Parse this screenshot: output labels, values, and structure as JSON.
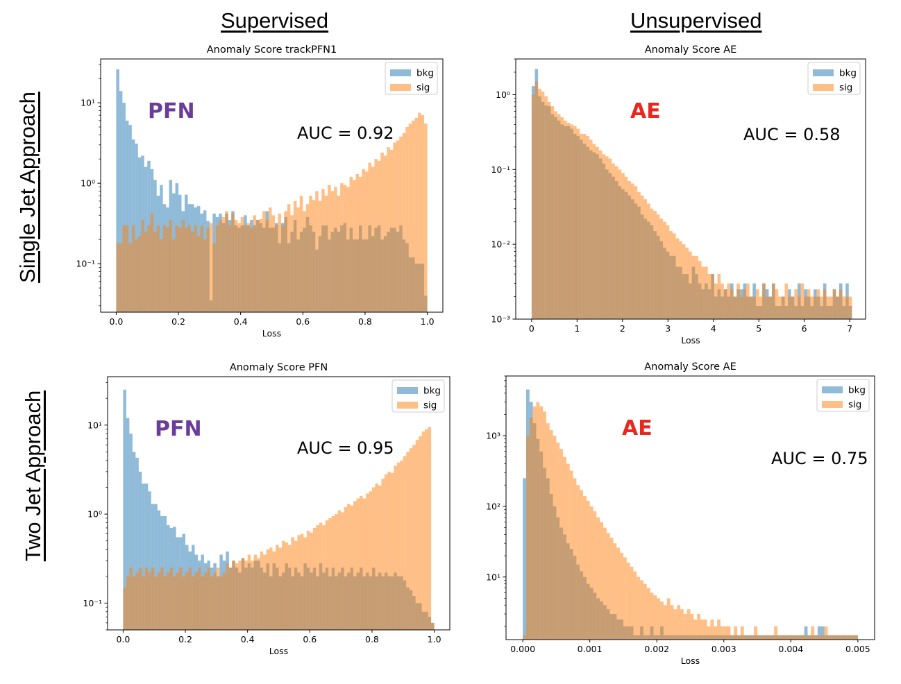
{
  "headings": {
    "left": "Supervised",
    "right": "Unsupervised"
  },
  "row_labels": {
    "top": "Single Jet Approach",
    "bottom": "Two Jet Approach"
  },
  "colors": {
    "bkg": "#1f77b4",
    "sig": "#ff7f0e",
    "bar_alpha": 0.5,
    "pfn_label": "#6a3d9a",
    "ae_label": "#e8281e"
  },
  "chart_data": [
    {
      "type": "bar",
      "histogram": true,
      "title": "Anomaly Score trackPFN1",
      "xlabel": "Loss",
      "ylabel": "",
      "xlim": [
        -0.05,
        1.05
      ],
      "ylim": [
        0.025,
        35
      ],
      "yscale": "log",
      "xticks": [
        0.0,
        0.2,
        0.4,
        0.6,
        0.8,
        1.0
      ],
      "xtick_labels": [
        "0.0",
        "0.2",
        "0.4",
        "0.6",
        "0.8",
        "1.0"
      ],
      "yticks": [
        0.1,
        1,
        10
      ],
      "ytick_labels": [
        "10⁻¹",
        "10⁰",
        "10¹"
      ],
      "legend": [
        "bkg",
        "sig"
      ],
      "legend_loc": "upper right",
      "grid": false,
      "label_text": "PFN",
      "label_color": "#6a3d9a",
      "auc": "AUC = 0.92",
      "bins": {
        "start": 0.0,
        "stop": 1.0
      },
      "series": [
        {
          "name": "bkg",
          "values": [
            26,
            14,
            10,
            6,
            5.3,
            3.5,
            3.1,
            2.1,
            2.2,
            1.6,
            1.9,
            1.5,
            1.1,
            0.7,
            0.95,
            0.55,
            0.5,
            1.1,
            0.75,
            1.0,
            0.72,
            0.45,
            0.72,
            0.55,
            0.55,
            0.5,
            0.52,
            0.42,
            0.46,
            0.34,
            0.035,
            0.42,
            0.38,
            0.42,
            0.32,
            0.42,
            0.35,
            0.45,
            0.3,
            0.28,
            0.3,
            0.4,
            0.3,
            0.35,
            0.3,
            0.35,
            0.32,
            0.28,
            0.45,
            0.28,
            0.28,
            0.32,
            0.18,
            0.32,
            0.38,
            0.18,
            0.25,
            0.35,
            0.2,
            0.25,
            0.28,
            0.38,
            0.3,
            0.25,
            0.15,
            0.22,
            0.3,
            0.3,
            0.2,
            0.25,
            0.28,
            0.25,
            0.3,
            0.32,
            0.2,
            0.28,
            0.2,
            0.2,
            0.3,
            0.2,
            0.2,
            0.3,
            0.22,
            0.28,
            0.3,
            0.2,
            0.22,
            0.25,
            0.28,
            0.28,
            0.25,
            0.3,
            0.2,
            0.18,
            0.12,
            0.12,
            0.1,
            0.1,
            0.1,
            0.04
          ]
        },
        {
          "name": "sig",
          "values": [
            0.18,
            0.18,
            0.3,
            0.3,
            0.18,
            0.3,
            0.2,
            0.22,
            0.35,
            0.25,
            0.3,
            0.42,
            0.25,
            0.3,
            0.2,
            0.3,
            0.28,
            0.35,
            0.2,
            0.3,
            0.28,
            0.35,
            0.28,
            0.3,
            0.25,
            0.3,
            0.22,
            0.3,
            0.2,
            0.28,
            0.32,
            0.18,
            0.3,
            0.35,
            0.38,
            0.45,
            0.3,
            0.42,
            0.35,
            0.32,
            0.38,
            0.3,
            0.32,
            0.28,
            0.4,
            0.35,
            0.36,
            0.45,
            0.35,
            0.5,
            0.4,
            0.3,
            0.42,
            0.3,
            0.45,
            0.55,
            0.4,
            0.6,
            0.5,
            0.7,
            0.45,
            0.55,
            0.7,
            0.62,
            0.8,
            0.6,
            0.85,
            0.7,
            0.95,
            0.8,
            0.9,
            0.7,
            1.0,
            0.95,
            0.9,
            1.2,
            1.1,
            1.3,
            1.2,
            1.5,
            1.4,
            1.8,
            1.6,
            2.0,
            1.9,
            2.4,
            2.2,
            2.8,
            2.6,
            3.2,
            3.4,
            3.8,
            4.2,
            5.0,
            5.5,
            6.0,
            6.5,
            7.5,
            7.0,
            5.5
          ]
        }
      ]
    },
    {
      "type": "bar",
      "histogram": true,
      "title": "Anomaly Score AE",
      "xlabel": "Loss",
      "ylabel": "",
      "xlim": [
        -0.35,
        7.35
      ],
      "ylim": [
        0.001,
        3
      ],
      "yscale": "log",
      "xticks": [
        0,
        1,
        2,
        3,
        4,
        5,
        6,
        7
      ],
      "xtick_labels": [
        "0",
        "1",
        "2",
        "3",
        "4",
        "5",
        "6",
        "7"
      ],
      "yticks": [
        0.001,
        0.01,
        0.1,
        1
      ],
      "ytick_labels": [
        "10⁻³",
        "10⁻²",
        "10⁻¹",
        "10⁰"
      ],
      "legend": [
        "bkg",
        "sig"
      ],
      "legend_loc": "upper right",
      "grid": false,
      "label_text": "AE",
      "label_color": "#e8281e",
      "auc": "AUC = 0.58",
      "bins": {
        "start": 0.0,
        "stop": 7.05
      },
      "series": [
        {
          "name": "bkg",
          "values": [
            1.3,
            2.2,
            0.95,
            0.8,
            0.72,
            0.7,
            0.55,
            0.5,
            0.45,
            0.4,
            0.38,
            0.38,
            0.35,
            0.3,
            0.28,
            0.25,
            0.22,
            0.2,
            0.18,
            0.17,
            0.16,
            0.14,
            0.12,
            0.1,
            0.09,
            0.08,
            0.07,
            0.06,
            0.055,
            0.05,
            0.045,
            0.04,
            0.035,
            0.032,
            0.025,
            0.022,
            0.02,
            0.018,
            0.015,
            0.013,
            0.011,
            0.009,
            0.008,
            0.007,
            0.007,
            0.005,
            0.005,
            0.004,
            0.004,
            0.003,
            0.005,
            0.004,
            0.003,
            0.0025,
            0.003,
            0.0025,
            0.004,
            0.002,
            0.0025,
            0.002,
            0.0025,
            0.002,
            0.003,
            0.002,
            0.0025,
            0.0025,
            0.003,
            0.002,
            0.002,
            0.003,
            0.0015,
            0.0015,
            0.003,
            0.0025,
            0.002,
            0.003,
            0.0015,
            0.0015,
            0.002,
            0.0015,
            0.0025,
            0.002,
            0.0015,
            0.003,
            0.0015,
            0.0025,
            0.002,
            0.0015,
            0.0025,
            0.002,
            0.0015,
            0.003,
            0.0015,
            0.0015,
            0.0025,
            0.002,
            0.003,
            0.0015,
            0.003,
            0.0015
          ]
        },
        {
          "name": "sig",
          "values": [
            1.0,
            1.5,
            1.2,
            1.1,
            0.95,
            0.8,
            0.7,
            0.6,
            0.55,
            0.5,
            0.45,
            0.42,
            0.4,
            0.38,
            0.35,
            0.3,
            0.3,
            0.28,
            0.25,
            0.22,
            0.2,
            0.18,
            0.16,
            0.15,
            0.14,
            0.12,
            0.11,
            0.1,
            0.09,
            0.08,
            0.07,
            0.065,
            0.06,
            0.05,
            0.045,
            0.04,
            0.035,
            0.03,
            0.028,
            0.025,
            0.022,
            0.02,
            0.018,
            0.015,
            0.014,
            0.012,
            0.011,
            0.01,
            0.009,
            0.008,
            0.007,
            0.007,
            0.006,
            0.005,
            0.005,
            0.004,
            0.004,
            0.003,
            0.004,
            0.003,
            0.0025,
            0.003,
            0.0025,
            0.002,
            0.003,
            0.002,
            0.0025,
            0.003,
            0.002,
            0.002,
            0.0025,
            0.002,
            0.003,
            0.002,
            0.002,
            0.003,
            0.0025,
            0.002,
            0.002,
            0.003,
            0.002,
            0.002,
            0.0025,
            0.002,
            0.003,
            0.002,
            0.0025,
            0.002,
            0.002,
            0.0025,
            0.002,
            0.0025,
            0.002,
            0.002,
            0.0025,
            0.002,
            0.0025,
            0.002,
            0.002,
            0.002
          ]
        }
      ]
    },
    {
      "type": "bar",
      "histogram": true,
      "title": "Anomaly Score PFN",
      "xlabel": "Loss",
      "ylabel": "",
      "xlim": [
        -0.05,
        1.05
      ],
      "ylim": [
        0.05,
        35
      ],
      "yscale": "log",
      "xticks": [
        0.0,
        0.2,
        0.4,
        0.6,
        0.8,
        1.0
      ],
      "xtick_labels": [
        "0.0",
        "0.2",
        "0.4",
        "0.6",
        "0.8",
        "1.0"
      ],
      "yticks": [
        0.1,
        1,
        10
      ],
      "ytick_labels": [
        "10⁻¹",
        "10⁰",
        "10¹"
      ],
      "legend": [
        "bkg",
        "sig"
      ],
      "legend_loc": "upper right",
      "grid": false,
      "label_text": "PFN",
      "label_color": "#6a3d9a",
      "auc": "AUC = 0.95",
      "bins": {
        "start": 0.0,
        "stop": 1.0
      },
      "series": [
        {
          "name": "bkg",
          "values": [
            25,
            12,
            8,
            5,
            4.3,
            3.0,
            2.2,
            2.2,
            1.8,
            1.3,
            1.3,
            1.1,
            0.95,
            0.95,
            0.75,
            0.7,
            0.72,
            0.55,
            0.55,
            0.6,
            0.45,
            0.38,
            0.45,
            0.35,
            0.3,
            0.35,
            0.28,
            0.3,
            0.25,
            0.28,
            0.2,
            0.35,
            0.3,
            0.38,
            0.25,
            0.3,
            0.25,
            0.22,
            0.32,
            0.25,
            0.28,
            0.25,
            0.3,
            0.3,
            0.25,
            0.22,
            0.28,
            0.2,
            0.28,
            0.25,
            0.2,
            0.22,
            0.28,
            0.25,
            0.2,
            0.25,
            0.22,
            0.2,
            0.28,
            0.25,
            0.22,
            0.25,
            0.2,
            0.28,
            0.22,
            0.25,
            0.2,
            0.25,
            0.2,
            0.22,
            0.25,
            0.2,
            0.22,
            0.25,
            0.2,
            0.22,
            0.25,
            0.2,
            0.22,
            0.2,
            0.25,
            0.2,
            0.22,
            0.2,
            0.22,
            0.2,
            0.2,
            0.22,
            0.2,
            0.2,
            0.18,
            0.15,
            0.14,
            0.12,
            0.1,
            0.1,
            0.08,
            0.08,
            0.07,
            0.06
          ]
        },
        {
          "name": "sig",
          "values": [
            0.15,
            0.2,
            0.25,
            0.2,
            0.22,
            0.25,
            0.2,
            0.25,
            0.22,
            0.25,
            0.2,
            0.22,
            0.25,
            0.2,
            0.22,
            0.25,
            0.2,
            0.22,
            0.25,
            0.2,
            0.22,
            0.25,
            0.2,
            0.22,
            0.25,
            0.2,
            0.22,
            0.25,
            0.2,
            0.22,
            0.25,
            0.2,
            0.22,
            0.28,
            0.25,
            0.3,
            0.28,
            0.3,
            0.32,
            0.3,
            0.35,
            0.3,
            0.35,
            0.32,
            0.38,
            0.35,
            0.4,
            0.42,
            0.38,
            0.45,
            0.42,
            0.5,
            0.48,
            0.45,
            0.55,
            0.5,
            0.58,
            0.6,
            0.55,
            0.65,
            0.62,
            0.7,
            0.75,
            0.8,
            0.75,
            0.85,
            0.9,
            0.95,
            1.0,
            1.1,
            1.05,
            1.2,
            1.3,
            1.25,
            1.4,
            1.5,
            1.6,
            1.5,
            1.7,
            1.8,
            2.0,
            2.2,
            2.1,
            2.5,
            2.8,
            3.0,
            2.9,
            3.5,
            3.8,
            4.0,
            4.5,
            5.0,
            5.5,
            6.0,
            6.8,
            7.5,
            8.5,
            9.0,
            9.5,
            0.06
          ]
        }
      ]
    },
    {
      "type": "bar",
      "histogram": true,
      "title": "Anomaly Score AE",
      "xlabel": "Loss",
      "ylabel": "",
      "xlim": [
        -0.00025,
        0.00525
      ],
      "ylim": [
        1.3,
        7000
      ],
      "yscale": "log",
      "xticks": [
        0.0,
        0.001,
        0.002,
        0.003,
        0.004,
        0.005
      ],
      "xtick_labels": [
        "0.000",
        "0.001",
        "0.002",
        "0.003",
        "0.004",
        "0.005"
      ],
      "yticks": [
        10,
        100,
        1000
      ],
      "ytick_labels": [
        "10¹",
        "10²",
        "10³"
      ],
      "legend": [
        "bkg",
        "sig"
      ],
      "legend_loc": "upper right",
      "grid": false,
      "label_text": "AE",
      "label_color": "#e8281e",
      "auc": "AUC = 0.75",
      "bins": {
        "start": 0.0,
        "stop": 0.005
      },
      "series": [
        {
          "name": "bkg",
          "values": [
            250,
            4500,
            3000,
            1500,
            900,
            600,
            350,
            250,
            150,
            100,
            70,
            50,
            40,
            30,
            25,
            20,
            15,
            12,
            10,
            8,
            7,
            6,
            5,
            4.5,
            4,
            3.5,
            3,
            3,
            2.5,
            2.5,
            2,
            2,
            2,
            1.5,
            1.5,
            2,
            1.5,
            1.5,
            2,
            1.5,
            1.5,
            2,
            1.5,
            1.5,
            1.5,
            1.5,
            1.5,
            1.5,
            1.5,
            1.5,
            1.5,
            1.5,
            1.5,
            1.5,
            1.5,
            1.5,
            1.5,
            1.5,
            1.5,
            1.5,
            1.5,
            1.5,
            1.5,
            1.5,
            1.5,
            1.5,
            1.5,
            1.5,
            1.5,
            1.5,
            1.5,
            1.5,
            1.5,
            1.5,
            1.5,
            1.5,
            1.5,
            1.5,
            1.5,
            1.5,
            1.5,
            1.5,
            1.5,
            1.5,
            2,
            1.5,
            1.5,
            1.5,
            2,
            2,
            1.5,
            1.5,
            1.5,
            1.5,
            1.5,
            1.5,
            1.5,
            1.5,
            1.5,
            1.5
          ]
        },
        {
          "name": "sig",
          "values": [
            1.5,
            1000,
            1800,
            2600,
            3000,
            2600,
            2200,
            1500,
            1200,
            1000,
            800,
            650,
            500,
            400,
            320,
            250,
            200,
            170,
            140,
            120,
            100,
            85,
            70,
            60,
            50,
            42,
            36,
            30,
            26,
            22,
            19,
            16,
            14,
            12,
            10,
            9,
            8,
            7,
            6,
            5.5,
            5,
            4.5,
            4,
            5,
            4,
            3.5,
            4,
            3.5,
            3,
            3.5,
            3,
            2.5,
            3,
            2.5,
            2.5,
            2,
            2.5,
            2,
            2.5,
            2,
            2,
            2,
            1.5,
            2,
            1.5,
            2,
            1.5,
            1.5,
            1.5,
            2,
            1.5,
            1.5,
            1.5,
            1.5,
            1.5,
            2,
            1.5,
            1.5,
            1.5,
            1.5,
            1.5,
            1.5,
            1.5,
            1.5,
            1.5,
            1.5,
            2,
            1.5,
            1.5,
            1.5,
            2,
            1.5,
            1.5,
            1.5,
            1.5,
            1.5,
            1.5,
            1.5,
            1.5,
            1.5
          ]
        }
      ]
    }
  ]
}
